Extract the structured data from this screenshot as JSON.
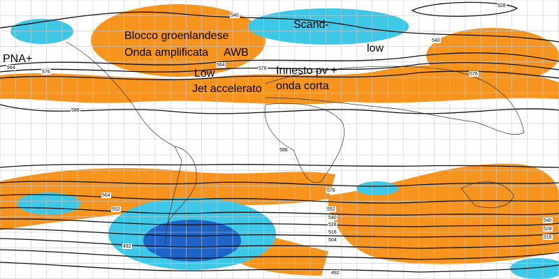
{
  "map": {
    "annotations": [
      "PNA+",
      "Blocco groenlandese",
      "Onda amplificata",
      "AWB",
      "Low",
      "Jet accelerato",
      "Scand-",
      "low",
      "Innesto pv +",
      "onda corta"
    ],
    "contour_labels": [
      528,
      540,
      540,
      564,
      576,
      564,
      576,
      576,
      588,
      588,
      576,
      564,
      552,
      552,
      540,
      528,
      516,
      504,
      492,
      492,
      540,
      528,
      516
    ]
  }
}
